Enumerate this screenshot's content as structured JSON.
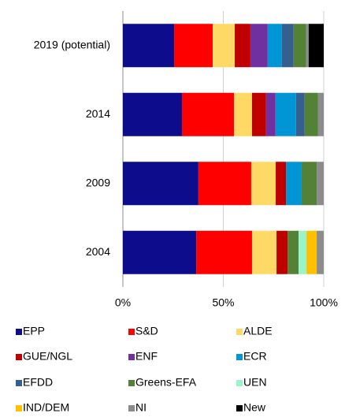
{
  "chart_data": {
    "type": "stacked-barh",
    "categories": [
      "2019 (potential)",
      "2014",
      "2009",
      "2004"
    ],
    "series": [
      {
        "name": "EPP",
        "color": "#0c0c8c",
        "values": [
          25.5,
          29.4,
          37.6,
          36.5
        ]
      },
      {
        "name": "S&D",
        "color": "#ff0000",
        "values": [
          19.2,
          25.9,
          26.3,
          27.8
        ]
      },
      {
        "name": "ALDE",
        "color": "#ffd966",
        "values": [
          11,
          9,
          12.2,
          12.2
        ]
      },
      {
        "name": "GUE/NGL",
        "color": "#c00000",
        "values": [
          7.8,
          7,
          5.1,
          5.5
        ]
      },
      {
        "name": "ENF",
        "color": "#7030a0",
        "values": [
          8.6,
          4.7,
          null,
          null
        ]
      },
      {
        "name": "ECR",
        "color": "#0096d6",
        "values": [
          7,
          10.2,
          7.8,
          null
        ]
      },
      {
        "name": "EFDD",
        "color": "#355f8e",
        "values": [
          5.9,
          4.3,
          null,
          null
        ]
      },
      {
        "name": "Greens-EFA",
        "color": "#538135",
        "values": [
          6.3,
          6.7,
          7.5,
          5.5
        ]
      },
      {
        "name": "UEN",
        "color": "#99f5c8",
        "values": [
          null,
          null,
          null,
          3.9
        ]
      },
      {
        "name": "IND/DEM",
        "color": "#ffc000",
        "values": [
          null,
          null,
          null,
          5.1
        ]
      },
      {
        "name": "NI",
        "color": "#8c8c8c",
        "values": [
          1.2,
          2.8,
          3.5,
          3.5
        ]
      },
      {
        "name": "New",
        "color": "#000000",
        "values": [
          7.5,
          null,
          null,
          null
        ]
      }
    ],
    "xlim": [
      0,
      100
    ],
    "xticks": [
      {
        "value": 0,
        "label": "0%"
      },
      {
        "value": 50,
        "label": "50%"
      },
      {
        "value": 100,
        "label": "100%"
      }
    ],
    "grid": true
  }
}
